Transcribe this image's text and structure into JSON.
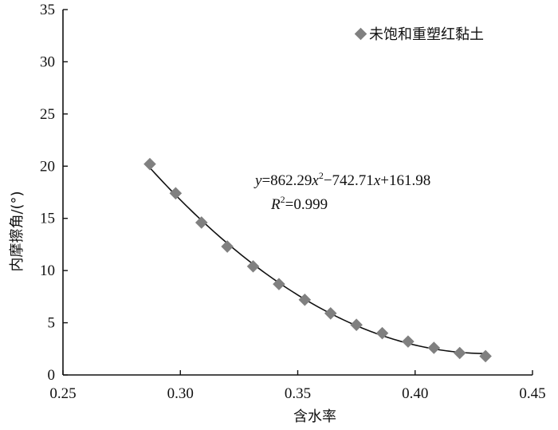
{
  "chart_data": {
    "type": "scatter",
    "xlabel": "含水率",
    "ylabel": "内摩擦角/(°)",
    "xlim": [
      0.25,
      0.45
    ],
    "ylim": [
      0,
      35
    ],
    "xticks": [
      "0.25",
      "0.30",
      "0.35",
      "0.40",
      "0.45"
    ],
    "yticks": [
      "0",
      "5",
      "10",
      "15",
      "20",
      "25",
      "30",
      "35"
    ],
    "grid": false,
    "legend_position": "top-right",
    "series": [
      {
        "name": "未饱和重塑红黏土",
        "marker": "diamond",
        "color": "#808080",
        "x": [
          0.287,
          0.298,
          0.309,
          0.32,
          0.331,
          0.342,
          0.353,
          0.364,
          0.375,
          0.386,
          0.397,
          0.408,
          0.419,
          0.43
        ],
        "y": [
          20.2,
          17.4,
          14.6,
          12.3,
          10.4,
          8.7,
          7.2,
          5.9,
          4.8,
          4.0,
          3.2,
          2.6,
          2.1,
          1.8
        ]
      }
    ],
    "fit": {
      "a": 862.29,
      "b": -742.71,
      "c": 161.98,
      "x_range": [
        0.287,
        0.43
      ],
      "color": "#111111"
    },
    "annotations": {
      "equation": {
        "y_var": "y",
        "eq1": "=862.29",
        "x_var1": "x",
        "sup": "2",
        "eq2": "−742.71",
        "x_var2": "x",
        "eq3": "+161.98"
      },
      "r2": {
        "var": "R",
        "sup": "2",
        "value": "=0.999"
      }
    }
  }
}
